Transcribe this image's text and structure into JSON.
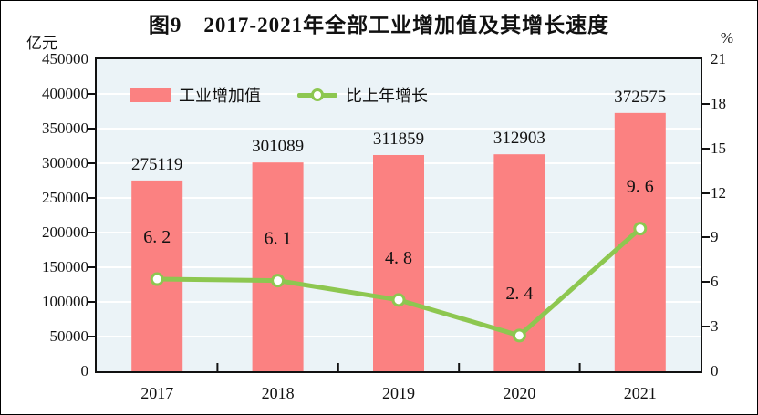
{
  "page": {
    "title": "图9　2017-2021年全部工业增加值及其增长速度",
    "unit_left": "亿元",
    "unit_right": "%"
  },
  "legend": {
    "bar_label": "工业增加值",
    "line_label": "比上年增长"
  },
  "colors": {
    "bar": "#FB8181",
    "line": "#8DC750",
    "marker_fill": "#FFFFFF",
    "plot_bg": "#EBF3F7",
    "grid": "#FFFFFF",
    "axis": "#111111",
    "text": "#111111"
  },
  "chart_data": {
    "type": "bar+line",
    "title": "图9　2017-2021年全部工业增加值及其增长速度",
    "categories": [
      "2017",
      "2018",
      "2019",
      "2020",
      "2021"
    ],
    "series": [
      {
        "name": "工业增加值",
        "type": "bar",
        "axis": "left",
        "values": [
          275119,
          301089,
          311859,
          312903,
          372575
        ],
        "labels": [
          "275119",
          "301089",
          "311859",
          "312903",
          "372575"
        ]
      },
      {
        "name": "比上年增长",
        "type": "line",
        "axis": "right",
        "values": [
          6.2,
          6.1,
          4.8,
          2.4,
          9.6
        ],
        "labels": [
          "6. 2",
          "6. 1",
          "4. 8",
          "2. 4",
          "9. 6"
        ]
      }
    ],
    "left_axis": {
      "label": "亿元",
      "min": 0,
      "max": 450000,
      "step": 50000,
      "ticks": [
        "0",
        "50000",
        "100000",
        "150000",
        "200000",
        "250000",
        "300000",
        "350000",
        "400000",
        "450000"
      ]
    },
    "right_axis": {
      "label": "%",
      "min": 0,
      "max": 21,
      "step": 3,
      "ticks": [
        "0",
        "3",
        "6",
        "9",
        "12",
        "15",
        "18",
        "21"
      ]
    },
    "grid": true,
    "legend_position": "top-left-inside"
  }
}
